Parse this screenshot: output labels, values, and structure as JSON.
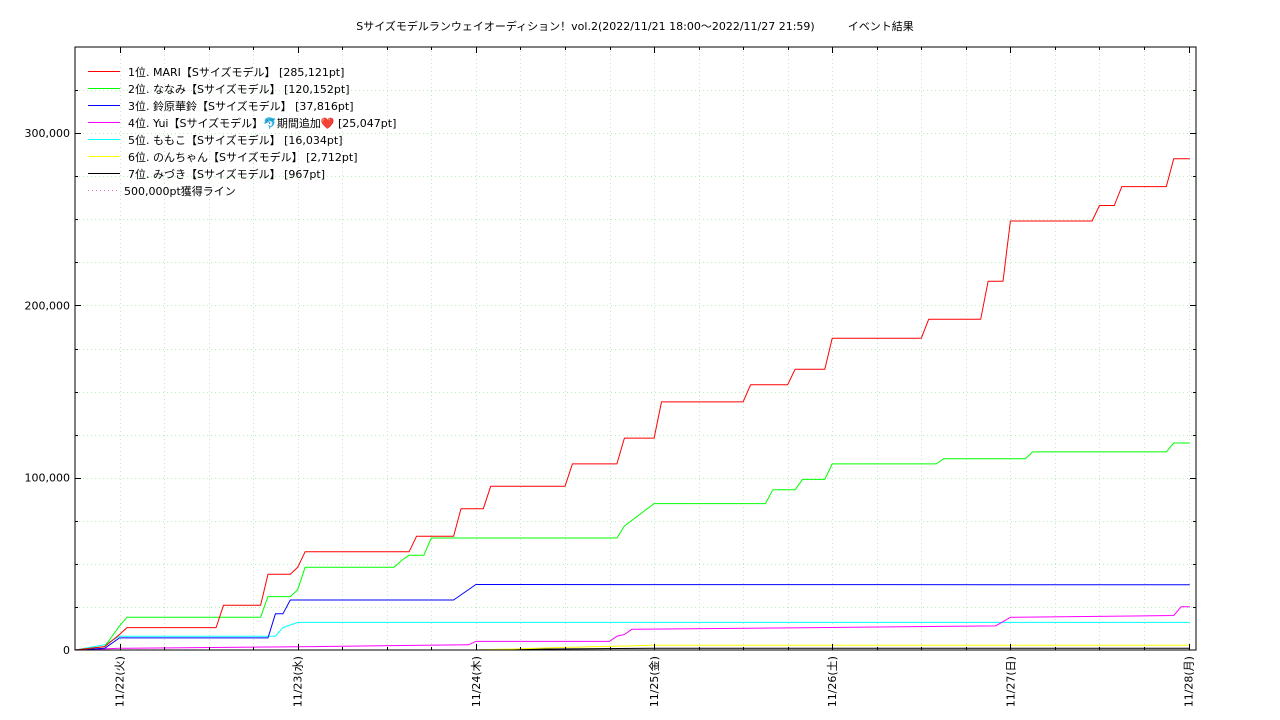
{
  "chart_data": {
    "type": "line",
    "title": "Sサイズモデルランウェイオーディション！vol.2(2022/11/21 18:00～2022/11/27 21:59)　　　イベント結果",
    "xlabel": "",
    "ylabel": "",
    "xlim": [
      "2022-11-21 18:00",
      "2022-11-28 01:00"
    ],
    "ylim": [
      0,
      350000
    ],
    "x_ticks": [
      {
        "x": "2022-11-22 00:00",
        "label": "11/22(火)"
      },
      {
        "x": "2022-11-23 00:00",
        "label": "11/23(水)"
      },
      {
        "x": "2022-11-24 00:00",
        "label": "11/24(木)"
      },
      {
        "x": "2022-11-25 00:00",
        "label": "11/25(金)"
      },
      {
        "x": "2022-11-26 00:00",
        "label": "11/26(土)"
      },
      {
        "x": "2022-11-27 00:00",
        "label": "11/27(日)"
      },
      {
        "x": "2022-11-28 00:00",
        "label": "11/28(月)"
      }
    ],
    "y_ticks": [
      {
        "y": 0,
        "label": "0"
      },
      {
        "y": 100000,
        "label": "100,000"
      },
      {
        "y": 200000,
        "label": "200,000"
      },
      {
        "y": 300000,
        "label": "300,000"
      }
    ],
    "grid": true,
    "legend_position": "top-left",
    "series": [
      {
        "name": "1位. MARI【Sサイズモデル】 [285,121pt]",
        "color": "#ff0000",
        "points": [
          [
            "2022-11-21 18:00",
            0
          ],
          [
            "2022-11-21 22:00",
            2000
          ],
          [
            "2022-11-22 00:00",
            9000
          ],
          [
            "2022-11-22 01:00",
            13000
          ],
          [
            "2022-11-22 13:00",
            13000
          ],
          [
            "2022-11-22 14:00",
            26000
          ],
          [
            "2022-11-22 19:00",
            26000
          ],
          [
            "2022-11-22 20:00",
            44000
          ],
          [
            "2022-11-22 23:00",
            44000
          ],
          [
            "2022-11-23 00:00",
            48000
          ],
          [
            "2022-11-23 01:00",
            57000
          ],
          [
            "2022-11-23 15:00",
            57000
          ],
          [
            "2022-11-23 16:00",
            66000
          ],
          [
            "2022-11-23 21:00",
            66000
          ],
          [
            "2022-11-23 22:00",
            82000
          ],
          [
            "2022-11-24 01:00",
            82000
          ],
          [
            "2022-11-24 02:00",
            95000
          ],
          [
            "2022-11-24 12:00",
            95000
          ],
          [
            "2022-11-24 13:00",
            108000
          ],
          [
            "2022-11-24 19:00",
            108000
          ],
          [
            "2022-11-24 20:00",
            123000
          ],
          [
            "2022-11-25 00:00",
            123000
          ],
          [
            "2022-11-25 01:00",
            144000
          ],
          [
            "2022-11-25 12:00",
            144000
          ],
          [
            "2022-11-25 13:00",
            154000
          ],
          [
            "2022-11-25 18:00",
            154000
          ],
          [
            "2022-11-25 19:00",
            163000
          ],
          [
            "2022-11-25 23:00",
            163000
          ],
          [
            "2022-11-26 00:00",
            181000
          ],
          [
            "2022-11-26 12:00",
            181000
          ],
          [
            "2022-11-26 13:00",
            192000
          ],
          [
            "2022-11-26 20:00",
            192000
          ],
          [
            "2022-11-26 21:00",
            214000
          ],
          [
            "2022-11-26 23:00",
            214000
          ],
          [
            "2022-11-27 00:00",
            249000
          ],
          [
            "2022-11-27 11:00",
            249000
          ],
          [
            "2022-11-27 12:00",
            258000
          ],
          [
            "2022-11-27 14:00",
            258000
          ],
          [
            "2022-11-27 15:00",
            269000
          ],
          [
            "2022-11-27 21:00",
            269000
          ],
          [
            "2022-11-27 21:30",
            277000
          ],
          [
            "2022-11-27 22:00",
            285121
          ],
          [
            "2022-11-28 00:10",
            285121
          ]
        ]
      },
      {
        "name": "2位. ななみ【Sサイズモデル】 [120,152pt]",
        "color": "#00ff00",
        "points": [
          [
            "2022-11-21 18:00",
            0
          ],
          [
            "2022-11-21 22:00",
            2000
          ],
          [
            "2022-11-22 00:00",
            14000
          ],
          [
            "2022-11-22 01:00",
            19000
          ],
          [
            "2022-11-22 19:00",
            19000
          ],
          [
            "2022-11-22 20:00",
            31000
          ],
          [
            "2022-11-22 23:00",
            31000
          ],
          [
            "2022-11-23 00:00",
            35000
          ],
          [
            "2022-11-23 01:00",
            48000
          ],
          [
            "2022-11-23 13:00",
            48000
          ],
          [
            "2022-11-23 14:00",
            52000
          ],
          [
            "2022-11-23 15:00",
            55000
          ],
          [
            "2022-11-23 17:00",
            55000
          ],
          [
            "2022-11-23 18:00",
            65000
          ],
          [
            "2022-11-24 19:00",
            65000
          ],
          [
            "2022-11-24 20:00",
            72000
          ],
          [
            "2022-11-25 00:00",
            85000
          ],
          [
            "2022-11-25 15:00",
            85000
          ],
          [
            "2022-11-25 16:00",
            93000
          ],
          [
            "2022-11-25 19:00",
            93000
          ],
          [
            "2022-11-25 20:00",
            99000
          ],
          [
            "2022-11-25 23:00",
            99000
          ],
          [
            "2022-11-26 00:00",
            108000
          ],
          [
            "2022-11-26 14:00",
            108000
          ],
          [
            "2022-11-26 15:00",
            111000
          ],
          [
            "2022-11-27 02:00",
            111000
          ],
          [
            "2022-11-27 03:00",
            115000
          ],
          [
            "2022-11-27 21:00",
            115000
          ],
          [
            "2022-11-27 22:00",
            120152
          ],
          [
            "2022-11-28 00:10",
            120152
          ]
        ]
      },
      {
        "name": "3位. 鈴原華鈴【Sサイズモデル】 [37,816pt]",
        "color": "#0000ff",
        "points": [
          [
            "2022-11-21 18:00",
            0
          ],
          [
            "2022-11-21 22:00",
            1000
          ],
          [
            "2022-11-22 00:00",
            7000
          ],
          [
            "2022-11-22 20:00",
            7000
          ],
          [
            "2022-11-22 21:00",
            21000
          ],
          [
            "2022-11-22 22:00",
            21000
          ],
          [
            "2022-11-22 23:00",
            29000
          ],
          [
            "2022-11-23 21:00",
            29000
          ],
          [
            "2022-11-24 00:00",
            38000
          ],
          [
            "2022-11-28 00:10",
            37816
          ]
        ]
      },
      {
        "name": "4位. Yui【Sサイズモデル】🐬期間追加❤️ [25,047pt]",
        "color": "#ff00ff",
        "points": [
          [
            "2022-11-21 18:00",
            0
          ],
          [
            "2022-11-22 00:00",
            1000
          ],
          [
            "2022-11-23 02:00",
            2000
          ],
          [
            "2022-11-23 23:00",
            3000
          ],
          [
            "2022-11-24 00:00",
            5000
          ],
          [
            "2022-11-24 18:00",
            5000
          ],
          [
            "2022-11-24 19:00",
            8000
          ],
          [
            "2022-11-24 20:00",
            9000
          ],
          [
            "2022-11-24 21:00",
            12000
          ],
          [
            "2022-11-25 22:00",
            13000
          ],
          [
            "2022-11-26 22:00",
            14000
          ],
          [
            "2022-11-27 00:00",
            19000
          ],
          [
            "2022-11-27 22:00",
            20000
          ],
          [
            "2022-11-27 23:00",
            25047
          ],
          [
            "2022-11-28 00:10",
            25047
          ]
        ]
      },
      {
        "name": "5位. ももこ【Sサイズモデル】 [16,034pt]",
        "color": "#00ffff",
        "points": [
          [
            "2022-11-21 18:00",
            0
          ],
          [
            "2022-11-21 22:00",
            3000
          ],
          [
            "2022-11-22 00:00",
            8000
          ],
          [
            "2022-11-22 21:00",
            8000
          ],
          [
            "2022-11-22 22:00",
            13000
          ],
          [
            "2022-11-23 00:00",
            16034
          ],
          [
            "2022-11-28 00:10",
            16034
          ]
        ]
      },
      {
        "name": "6位. のんちゃん【Sサイズモデル】 [2,712pt]",
        "color": "#ffff00",
        "points": [
          [
            "2022-11-21 18:00",
            0
          ],
          [
            "2022-11-24 00:00",
            0
          ],
          [
            "2022-11-24 12:00",
            1500
          ],
          [
            "2022-11-25 00:00",
            2712
          ],
          [
            "2022-11-28 00:10",
            2712
          ]
        ]
      },
      {
        "name": "7位. みづき【Sサイズモデル】 [967pt]",
        "color": "#000000",
        "points": [
          [
            "2022-11-21 18:00",
            0
          ],
          [
            "2022-11-24 00:00",
            0
          ],
          [
            "2022-11-24 08:00",
            500
          ],
          [
            "2022-11-25 00:00",
            967
          ],
          [
            "2022-11-28 00:10",
            967
          ]
        ]
      },
      {
        "name": "500,000pt獲得ライン",
        "color": "#ff66cc",
        "dotted": true,
        "points": []
      }
    ]
  }
}
